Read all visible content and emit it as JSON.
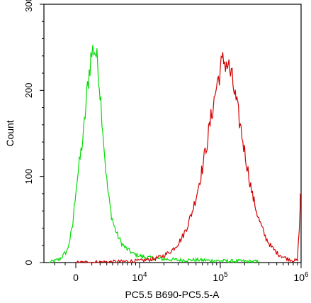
{
  "chart_data": {
    "type": "histogram",
    "xlabel": "PC5.5 B690-PC5.5-A",
    "ylabel": "Count",
    "x_scale": "biexponential",
    "y_range": [
      0,
      300
    ],
    "y_ticks": [
      {
        "label": "0",
        "value": 0
      },
      {
        "label": "100",
        "value": 100
      },
      {
        "label": "200",
        "value": 200
      },
      {
        "label": "300",
        "value": 300
      }
    ],
    "x_ticks": [
      {
        "label": "0",
        "value": 0
      },
      {
        "label": "10",
        "sup": "4",
        "value": 10000
      },
      {
        "label": "10",
        "sup": "5",
        "value": 100000
      },
      {
        "label": "10",
        "sup": "6",
        "value": 1000000
      }
    ],
    "series": [
      {
        "color": "#00dd00",
        "x": [
          -2500,
          -1500,
          -800,
          -300,
          0,
          300,
          600,
          900,
          1200,
          1500,
          1800,
          2100,
          2400,
          2700,
          3000,
          3400,
          3800,
          4300,
          4900,
          5600,
          6400,
          7400,
          8500,
          10000,
          12000,
          15000,
          20000,
          30000,
          50000,
          100000,
          300000
        ],
        "y": [
          0,
          4,
          14,
          42,
          85,
          150,
          205,
          238,
          250,
          242,
          220,
          188,
          155,
          122,
          95,
          72,
          55,
          42,
          32,
          24,
          18,
          14,
          10,
          8,
          6,
          5,
          4,
          3,
          3,
          2,
          1
        ]
      },
      {
        "color": "#d40000",
        "x": [
          0,
          5000,
          10000,
          15000,
          20000,
          25000,
          30000,
          35000,
          40000,
          45000,
          50000,
          60000,
          70000,
          80000,
          90000,
          100000,
          110000,
          125000,
          140000,
          160000,
          185000,
          215000,
          250000,
          300000,
          360000,
          430000,
          520000,
          620000,
          750000,
          900000,
          1000000
        ],
        "y": [
          0,
          1,
          2,
          4,
          8,
          14,
          22,
          32,
          45,
          60,
          76,
          110,
          145,
          178,
          205,
          225,
          235,
          230,
          212,
          182,
          148,
          112,
          78,
          50,
          30,
          18,
          10,
          6,
          3,
          2,
          80
        ]
      }
    ]
  }
}
